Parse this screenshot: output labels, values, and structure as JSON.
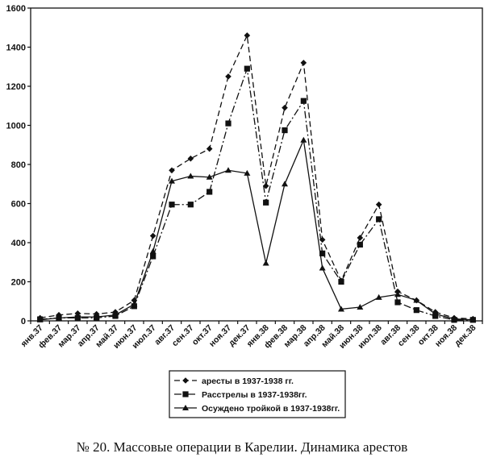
{
  "chart_data": {
    "type": "line",
    "title": "",
    "xlabel": "",
    "ylabel": "",
    "ylim": [
      0,
      1600
    ],
    "yticks": [
      0,
      200,
      400,
      600,
      800,
      1000,
      1200,
      1400,
      1600
    ],
    "categories": [
      "янв.37",
      "фев.37",
      "мар.37",
      "апр.37",
      "май.37",
      "июн.37",
      "июл.37",
      "авг.37",
      "сен.37",
      "окт.37",
      "ноя.37",
      "дек.37",
      "янв.38",
      "фев.38",
      "мар.38",
      "апр.38",
      "май.38",
      "июн.38",
      "июл.38",
      "авг.38",
      "сен.38",
      "окт.38",
      "ноя.38",
      "дек.38"
    ],
    "series": [
      {
        "name": "аресты в 1937-1938 гг.",
        "marker": "diamond",
        "dash": "7,4",
        "values": [
          15,
          30,
          38,
          35,
          45,
          105,
          435,
          770,
          830,
          880,
          1250,
          1460,
          690,
          1090,
          1320,
          415,
          205,
          425,
          595,
          150,
          105,
          45,
          15,
          10
        ]
      },
      {
        "name": "Расстрелы в 1937-1938гг.",
        "marker": "square",
        "dash": "9,3,2,3",
        "values": [
          8,
          15,
          15,
          15,
          25,
          75,
          330,
          595,
          595,
          660,
          1010,
          1290,
          605,
          975,
          1125,
          345,
          200,
          390,
          520,
          95,
          55,
          25,
          5,
          5
        ]
      },
      {
        "name": "Осуждено тройкой в 1937-1938гг.",
        "marker": "triangle",
        "dash": "",
        "values": [
          5,
          15,
          20,
          20,
          30,
          85,
          355,
          715,
          740,
          735,
          770,
          755,
          295,
          700,
          925,
          270,
          60,
          70,
          120,
          135,
          105,
          35,
          10,
          5
        ]
      }
    ],
    "legend_position": "bottom-center",
    "grid": false
  },
  "caption": "№ 20. Массовые операции в Карелии. Динамика арестов"
}
